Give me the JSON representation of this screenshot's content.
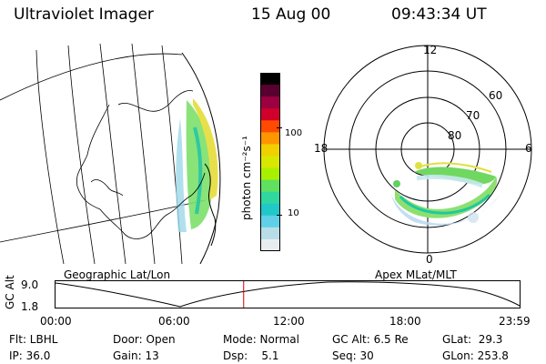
{
  "header": {
    "title": "Ultraviolet Imager",
    "date": "15 Aug 00",
    "time": "09:43:34 UT"
  },
  "colorbar": {
    "unit_label": "photon cm⁻²s⁻¹",
    "ticks": [
      "100",
      "10"
    ],
    "colors": [
      "#000000",
      "#5a0030",
      "#9c0040",
      "#d0002a",
      "#ff4a00",
      "#ff9600",
      "#f0d000",
      "#d8e800",
      "#a8f000",
      "#60e060",
      "#30d8a0",
      "#20c8c8",
      "#60d0e8",
      "#b8dce8",
      "#e8eef0"
    ]
  },
  "polar_plot": {
    "mlt_labels": [
      "12",
      "18",
      "6",
      "0"
    ],
    "lat_labels": [
      "60",
      "70",
      "80"
    ],
    "frame_label": "Apex MLat/MLT"
  },
  "geo_plot": {
    "frame_label": "Geographic Lat/Lon"
  },
  "altitude_plot": {
    "axis_label": "GC Alt",
    "ticks": [
      "9.0",
      "1.8"
    ],
    "time_labels": [
      "00:00",
      "06:00",
      "12:00",
      "18:00",
      "23:59"
    ],
    "cursor_time_hours": 9.73,
    "marker_color": "#cc0000"
  },
  "info": {
    "filter": "Flt: LBHL",
    "ip": "IP: 36.0",
    "door": "Door: Open",
    "gain": "Gain: 13",
    "mode": "Mode: Normal",
    "dsp": "Dsp:    5.1",
    "gc_alt": "GC Alt: 6.5 Re",
    "seq": "Seq: 30",
    "glat": "GLat:  29.3",
    "glon": "GLon: 253.8"
  }
}
